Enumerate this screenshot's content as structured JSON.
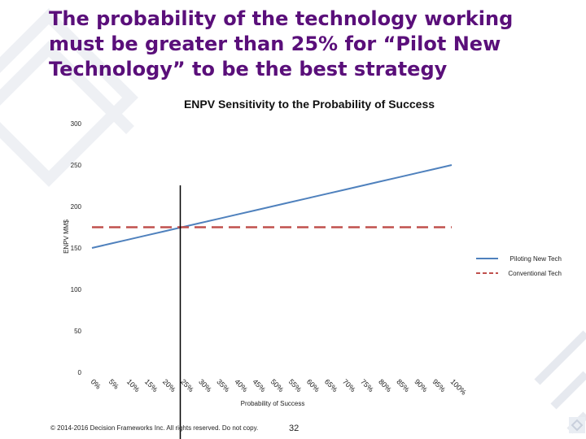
{
  "slide": {
    "title": "The probability of the technology working must be greater than 25% for “Pilot New Technology” to be the best strategy",
    "copyright": "© 2014-2016 Decision Frameworks Inc. All rights reserved. Do not copy.",
    "page_number": "32"
  },
  "colors": {
    "title": "#5a0f7a",
    "new_tech": "#4f81bd",
    "conventional": "#c0504d",
    "marker": "#000000"
  },
  "chart_data": {
    "type": "line",
    "title": "ENPV Sensitivity to the Probability of Success",
    "xlabel": "Probability of Success",
    "ylabel": "ENPV MM$",
    "categories": [
      "0%",
      "5%",
      "10%",
      "15%",
      "20%",
      "25%",
      "30%",
      "35%",
      "40%",
      "45%",
      "50%",
      "55%",
      "60%",
      "65%",
      "70%",
      "75%",
      "80%",
      "85%",
      "90%",
      "95%",
      "100%"
    ],
    "series": [
      {
        "name": "Piloting New Tech",
        "style": "solid",
        "values": [
          150,
          155,
          160,
          165,
          170,
          175,
          180,
          185,
          190,
          195,
          200,
          205,
          210,
          215,
          220,
          225,
          230,
          235,
          240,
          245,
          250
        ]
      },
      {
        "name": "Conventional Tech",
        "style": "dashed",
        "values": [
          175,
          175,
          175,
          175,
          175,
          175,
          175,
          175,
          175,
          175,
          175,
          175,
          175,
          175,
          175,
          175,
          175,
          175,
          175,
          175,
          175
        ]
      }
    ],
    "ylim": [
      0,
      300
    ],
    "yticks": [
      "0",
      "50",
      "100",
      "150",
      "200",
      "250",
      "300"
    ],
    "breakeven_x": "25%",
    "legend": "right"
  }
}
